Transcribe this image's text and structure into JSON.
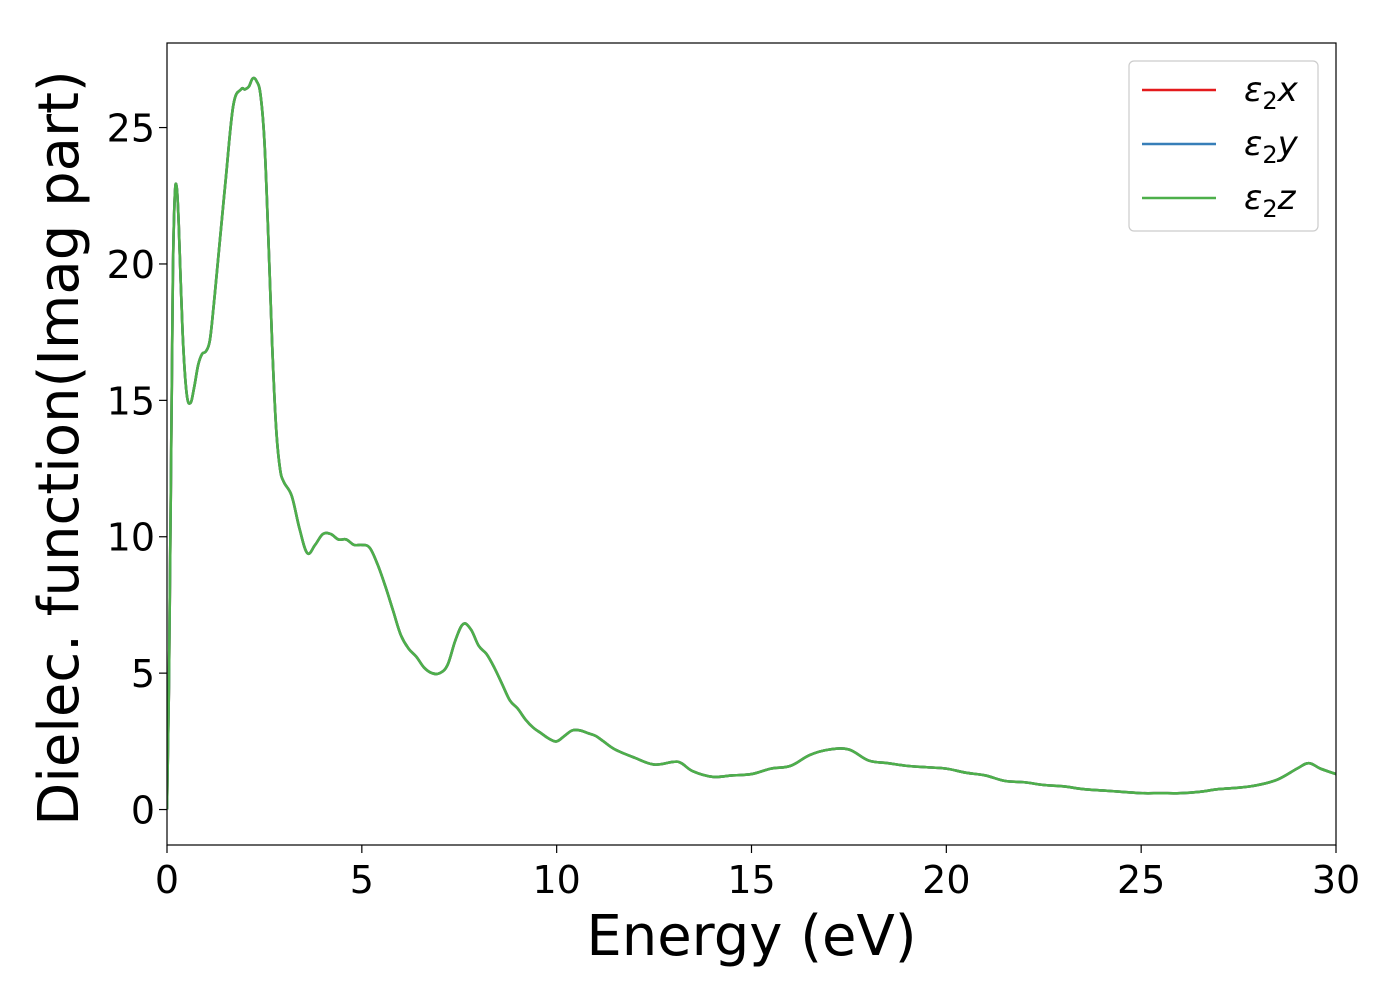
{
  "chart_data": {
    "type": "line",
    "title": "",
    "xlabel": "Energy (eV)",
    "ylabel": "Dielec. function(Imag part)",
    "xlim": [
      0,
      30
    ],
    "ylim": [
      -1.3,
      28.1
    ],
    "xticks": [
      0,
      5,
      10,
      15,
      20,
      25,
      30
    ],
    "yticks": [
      0,
      5,
      10,
      15,
      20,
      25
    ],
    "xtick_labels": [
      "0",
      "5",
      "10",
      "15",
      "20",
      "25",
      "30"
    ],
    "ytick_labels": [
      "0",
      "5",
      "10",
      "15",
      "20",
      "25"
    ],
    "grid": false,
    "legend_position": "top-right",
    "x": [
      0,
      0.05,
      0.1,
      0.15,
      0.2,
      0.25,
      0.3,
      0.4,
      0.5,
      0.6,
      0.7,
      0.8,
      0.9,
      1.0,
      1.1,
      1.2,
      1.3,
      1.5,
      1.7,
      1.9,
      2.0,
      2.1,
      2.2,
      2.3,
      2.4,
      2.5,
      2.6,
      2.7,
      2.8,
      2.9,
      3.0,
      3.2,
      3.4,
      3.6,
      3.8,
      4.0,
      4.2,
      4.4,
      4.6,
      4.8,
      5.0,
      5.2,
      5.4,
      5.6,
      5.8,
      6.0,
      6.2,
      6.4,
      6.6,
      6.8,
      7.0,
      7.2,
      7.4,
      7.6,
      7.8,
      8.0,
      8.2,
      8.4,
      8.6,
      8.8,
      9.0,
      9.2,
      9.4,
      9.6,
      9.8,
      10.0,
      10.2,
      10.4,
      10.6,
      10.8,
      11.0,
      11.2,
      11.5,
      12.0,
      12.5,
      13.0,
      13.2,
      13.5,
      14.0,
      14.5,
      15.0,
      15.5,
      16.0,
      16.5,
      17.0,
      17.5,
      18.0,
      18.5,
      19.0,
      19.5,
      20.0,
      20.5,
      21.0,
      21.5,
      22.0,
      22.5,
      23.0,
      23.5,
      24.0,
      24.5,
      25.0,
      25.5,
      26.0,
      26.5,
      27.0,
      27.5,
      28.0,
      28.5,
      29.0,
      29.3,
      29.6,
      30.0
    ],
    "series": [
      {
        "name": "ε2x",
        "color": "#e41a1c",
        "values": [
          0,
          4.5,
          12.0,
          19.5,
          22.5,
          22.8,
          21.5,
          17.5,
          15.3,
          14.9,
          15.5,
          16.3,
          16.7,
          16.8,
          17.2,
          18.5,
          20.0,
          23.0,
          25.8,
          26.4,
          26.4,
          26.5,
          26.8,
          26.7,
          26.2,
          24.5,
          21.0,
          17.0,
          14.0,
          12.5,
          12.0,
          11.5,
          10.3,
          9.4,
          9.7,
          10.1,
          10.1,
          9.9,
          9.9,
          9.7,
          9.7,
          9.6,
          9.0,
          8.2,
          7.3,
          6.4,
          5.9,
          5.6,
          5.2,
          5.0,
          5.0,
          5.3,
          6.2,
          6.8,
          6.6,
          6.0,
          5.7,
          5.2,
          4.6,
          4.0,
          3.7,
          3.3,
          3.0,
          2.8,
          2.6,
          2.5,
          2.7,
          2.9,
          2.9,
          2.8,
          2.7,
          2.5,
          2.2,
          1.9,
          1.65,
          1.75,
          1.7,
          1.4,
          1.2,
          1.25,
          1.3,
          1.5,
          1.6,
          2.0,
          2.2,
          2.2,
          1.8,
          1.7,
          1.6,
          1.55,
          1.5,
          1.35,
          1.25,
          1.05,
          1.0,
          0.9,
          0.85,
          0.75,
          0.7,
          0.65,
          0.6,
          0.6,
          0.6,
          0.65,
          0.75,
          0.8,
          0.9,
          1.1,
          1.5,
          1.7,
          1.5,
          1.3
        ]
      },
      {
        "name": "ε2y",
        "color": "#377eb8",
        "values": [
          0,
          4.5,
          12.0,
          19.5,
          22.5,
          22.8,
          21.5,
          17.5,
          15.3,
          14.9,
          15.5,
          16.3,
          16.7,
          16.8,
          17.2,
          18.5,
          20.0,
          23.0,
          25.8,
          26.4,
          26.4,
          26.5,
          26.8,
          26.7,
          26.2,
          24.5,
          21.0,
          17.0,
          14.0,
          12.5,
          12.0,
          11.5,
          10.3,
          9.4,
          9.7,
          10.1,
          10.1,
          9.9,
          9.9,
          9.7,
          9.7,
          9.6,
          9.0,
          8.2,
          7.3,
          6.4,
          5.9,
          5.6,
          5.2,
          5.0,
          5.0,
          5.3,
          6.2,
          6.8,
          6.6,
          6.0,
          5.7,
          5.2,
          4.6,
          4.0,
          3.7,
          3.3,
          3.0,
          2.8,
          2.6,
          2.5,
          2.7,
          2.9,
          2.9,
          2.8,
          2.7,
          2.5,
          2.2,
          1.9,
          1.65,
          1.75,
          1.7,
          1.4,
          1.2,
          1.25,
          1.3,
          1.5,
          1.6,
          2.0,
          2.2,
          2.2,
          1.8,
          1.7,
          1.6,
          1.55,
          1.5,
          1.35,
          1.25,
          1.05,
          1.0,
          0.9,
          0.85,
          0.75,
          0.7,
          0.65,
          0.6,
          0.6,
          0.6,
          0.65,
          0.75,
          0.8,
          0.9,
          1.1,
          1.5,
          1.7,
          1.5,
          1.3
        ]
      },
      {
        "name": "ε2z",
        "color": "#4daf4a",
        "values": [
          0,
          4.5,
          12.0,
          19.5,
          22.5,
          22.8,
          21.5,
          17.5,
          15.3,
          14.9,
          15.5,
          16.3,
          16.7,
          16.8,
          17.2,
          18.5,
          20.0,
          23.0,
          25.8,
          26.4,
          26.4,
          26.5,
          26.8,
          26.7,
          26.2,
          24.5,
          21.0,
          17.0,
          14.0,
          12.5,
          12.0,
          11.5,
          10.3,
          9.4,
          9.7,
          10.1,
          10.1,
          9.9,
          9.9,
          9.7,
          9.7,
          9.6,
          9.0,
          8.2,
          7.3,
          6.4,
          5.9,
          5.6,
          5.2,
          5.0,
          5.0,
          5.3,
          6.2,
          6.8,
          6.6,
          6.0,
          5.7,
          5.2,
          4.6,
          4.0,
          3.7,
          3.3,
          3.0,
          2.8,
          2.6,
          2.5,
          2.7,
          2.9,
          2.9,
          2.8,
          2.7,
          2.5,
          2.2,
          1.9,
          1.65,
          1.75,
          1.7,
          1.4,
          1.2,
          1.25,
          1.3,
          1.5,
          1.6,
          2.0,
          2.2,
          2.2,
          1.8,
          1.7,
          1.6,
          1.55,
          1.5,
          1.35,
          1.25,
          1.05,
          1.0,
          0.9,
          0.85,
          0.75,
          0.7,
          0.65,
          0.6,
          0.6,
          0.6,
          0.65,
          0.75,
          0.8,
          0.9,
          1.1,
          1.5,
          1.7,
          1.5,
          1.3
        ]
      }
    ],
    "legend": [
      {
        "symbol": "ε",
        "sub": "2",
        "var": "x"
      },
      {
        "symbol": "ε",
        "sub": "2",
        "var": "y"
      },
      {
        "symbol": "ε",
        "sub": "2",
        "var": "z"
      }
    ]
  }
}
